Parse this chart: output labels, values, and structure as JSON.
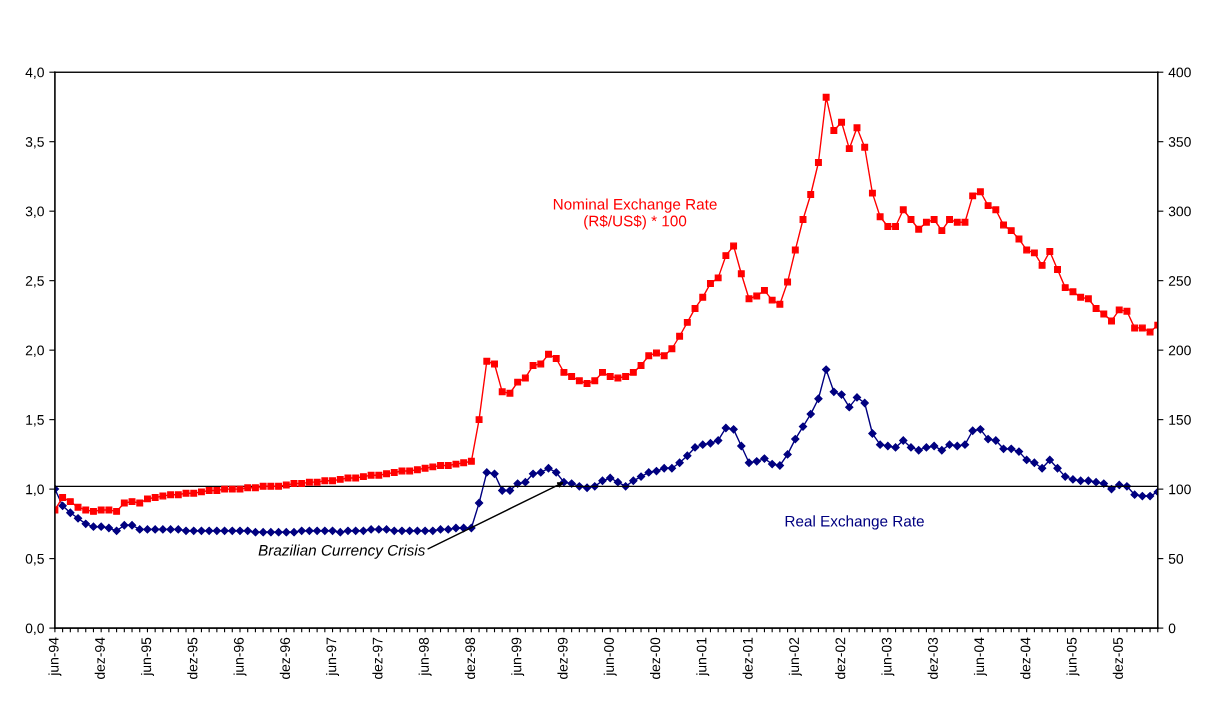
{
  "chart_data": {
    "type": "line",
    "categories": [
      "jun-94",
      null,
      null,
      null,
      null,
      null,
      "dez-94",
      null,
      null,
      null,
      null,
      null,
      "jun-95",
      null,
      null,
      null,
      null,
      null,
      "dez-95",
      null,
      null,
      null,
      null,
      null,
      "jun-96",
      null,
      null,
      null,
      null,
      null,
      "dez-96",
      null,
      null,
      null,
      null,
      null,
      "jun-97",
      null,
      null,
      null,
      null,
      null,
      "dez-97",
      null,
      null,
      null,
      null,
      null,
      "jun-98",
      null,
      null,
      null,
      null,
      null,
      "dez-98",
      null,
      null,
      null,
      null,
      null,
      "jun-99",
      null,
      null,
      null,
      null,
      null,
      "dez-99",
      null,
      null,
      null,
      null,
      null,
      "jun-00",
      null,
      null,
      null,
      null,
      null,
      "dez-00",
      null,
      null,
      null,
      null,
      null,
      "jun-01",
      null,
      null,
      null,
      null,
      null,
      "dez-01",
      null,
      null,
      null,
      null,
      null,
      "jun-02",
      null,
      null,
      null,
      null,
      null,
      "dez-02",
      null,
      null,
      null,
      null,
      null,
      "jun-03",
      null,
      null,
      null,
      null,
      null,
      "dez-03",
      null,
      null,
      null,
      null,
      null,
      "jun-04",
      null,
      null,
      null,
      null,
      null,
      "dez-04",
      null,
      null,
      null,
      null,
      null,
      "jun-05",
      null,
      null,
      null,
      null,
      null,
      "dez-05",
      null,
      null,
      null,
      null,
      null
    ],
    "series": [
      {
        "name": "Nominal Exchange Rate\n(R$/US$) * 100",
        "color": "#ff0000",
        "axis": "y2",
        "marker": "square",
        "values": [
          85,
          94,
          91,
          87,
          85,
          84,
          85,
          85,
          84,
          90,
          91,
          90,
          93,
          94,
          95,
          96,
          96,
          97,
          97,
          98,
          99,
          99,
          100,
          100,
          100,
          101,
          101,
          102,
          102,
          102,
          103,
          104,
          104,
          105,
          105,
          106,
          106,
          107,
          108,
          108,
          109,
          110,
          110,
          111,
          112,
          113,
          113,
          114,
          115,
          116,
          117,
          117,
          118,
          119,
          120,
          150,
          192,
          190,
          170,
          169,
          177,
          180,
          189,
          190,
          197,
          194,
          184,
          181,
          178,
          176,
          178,
          184,
          181,
          180,
          181,
          184,
          189,
          196,
          198,
          196,
          201,
          210,
          220,
          230,
          238,
          248,
          252,
          268,
          275,
          255,
          237,
          239,
          243,
          236,
          233,
          249,
          272,
          294,
          312,
          335,
          382,
          358,
          364,
          345,
          360,
          346,
          313,
          296,
          289,
          289,
          301,
          294,
          287,
          292,
          294,
          286,
          294,
          292,
          292,
          311,
          314,
          304,
          301,
          290,
          286,
          280,
          272,
          270,
          261,
          271,
          258,
          245,
          242,
          238,
          237,
          230,
          226,
          221,
          229,
          228,
          216,
          216,
          213,
          218
        ]
      },
      {
        "name": "Real Exchange Rate",
        "color": "#000080",
        "axis": "y",
        "marker": "diamond",
        "values": [
          1.0,
          0.88,
          0.83,
          0.79,
          0.75,
          0.73,
          0.73,
          0.72,
          0.7,
          0.74,
          0.74,
          0.71,
          0.71,
          0.71,
          0.71,
          0.71,
          0.71,
          0.7,
          0.7,
          0.7,
          0.7,
          0.7,
          0.7,
          0.7,
          0.7,
          0.7,
          0.69,
          0.69,
          0.69,
          0.69,
          0.69,
          0.69,
          0.7,
          0.7,
          0.7,
          0.7,
          0.7,
          0.69,
          0.7,
          0.7,
          0.7,
          0.71,
          0.71,
          0.71,
          0.7,
          0.7,
          0.7,
          0.7,
          0.7,
          0.7,
          0.71,
          0.71,
          0.72,
          0.72,
          0.72,
          0.9,
          1.12,
          1.11,
          0.99,
          0.99,
          1.04,
          1.05,
          1.11,
          1.12,
          1.15,
          1.12,
          1.05,
          1.04,
          1.02,
          1.01,
          1.02,
          1.06,
          1.08,
          1.05,
          1.02,
          1.06,
          1.09,
          1.12,
          1.13,
          1.15,
          1.15,
          1.19,
          1.24,
          1.3,
          1.32,
          1.33,
          1.35,
          1.44,
          1.43,
          1.31,
          1.19,
          1.2,
          1.22,
          1.18,
          1.17,
          1.25,
          1.36,
          1.45,
          1.54,
          1.65,
          1.86,
          1.7,
          1.68,
          1.59,
          1.66,
          1.62,
          1.4,
          1.32,
          1.31,
          1.3,
          1.35,
          1.3,
          1.28,
          1.3,
          1.31,
          1.28,
          1.32,
          1.31,
          1.32,
          1.42,
          1.43,
          1.36,
          1.35,
          1.29,
          1.29,
          1.27,
          1.21,
          1.19,
          1.15,
          1.21,
          1.15,
          1.09,
          1.07,
          1.06,
          1.06,
          1.05,
          1.04,
          1.0,
          1.03,
          1.02,
          0.96,
          0.95,
          0.95,
          0.98
        ]
      }
    ],
    "ylim": [
      0,
      4
    ],
    "yticks": [
      {
        "value": 0,
        "label": "0,0"
      },
      {
        "value": 0.5,
        "label": "0,5"
      },
      {
        "value": 1,
        "label": "1,0"
      },
      {
        "value": 1.5,
        "label": "1,5"
      },
      {
        "value": 2,
        "label": "2,0"
      },
      {
        "value": 2.5,
        "label": "2,5"
      },
      {
        "value": 3,
        "label": "3,0"
      },
      {
        "value": 3.5,
        "label": "3,5"
      },
      {
        "value": 4,
        "label": "4,0"
      }
    ],
    "y2lim": [
      0,
      400
    ],
    "y2ticks": [
      0,
      50,
      100,
      150,
      200,
      250,
      300,
      350,
      400
    ],
    "ref_lines": [
      {
        "axis": "y",
        "value": 1.02,
        "color": "#000000"
      }
    ],
    "annotations": [
      {
        "text": "Brazilian Currency Crisis",
        "x": "dez-99",
        "y": 1.05
      }
    ],
    "grid": false,
    "legend": false
  }
}
